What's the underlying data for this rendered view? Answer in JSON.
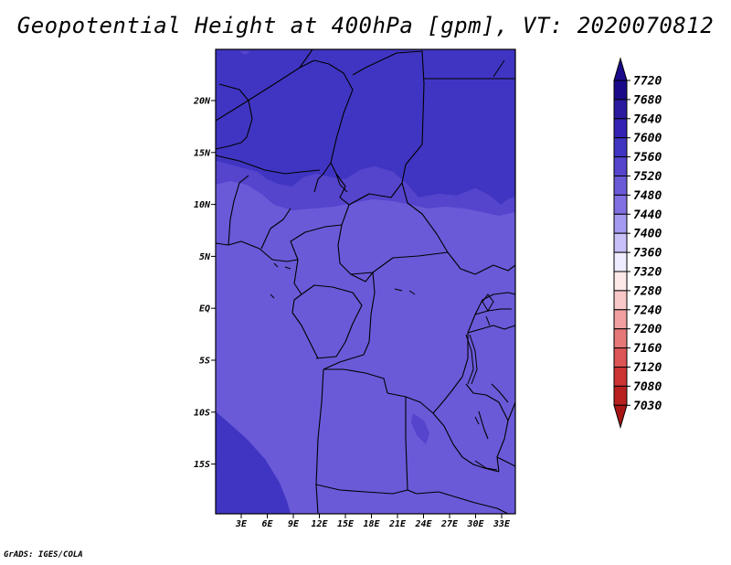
{
  "title": "Geopotential Height at 400hPa [gpm], VT: 2020070812",
  "credit": "GrADS: IGES/COLA",
  "axes": {
    "lon_labels": [
      "3E",
      "6E",
      "9E",
      "12E",
      "15E",
      "18E",
      "21E",
      "24E",
      "27E",
      "30E",
      "33E"
    ],
    "lat_labels": [
      "20N",
      "15N",
      "10N",
      "5N",
      "EQ",
      "5S",
      "10S",
      "15S"
    ]
  },
  "colorbar": {
    "labels": [
      "7720",
      "7680",
      "7640",
      "7600",
      "7560",
      "7520",
      "7480",
      "7440",
      "7400",
      "7360",
      "7320",
      "7280",
      "7240",
      "7200",
      "7160",
      "7120",
      "7080",
      "7030"
    ],
    "colors": [
      "#1a0a8a",
      "#2a1aa0",
      "#3322b4",
      "#4035c2",
      "#5544cc",
      "#6a5ad8",
      "#8070e2",
      "#a49af0",
      "#c8c0f8",
      "#f0ecff",
      "#ffe8e8",
      "#f8c8c8",
      "#f0a0a0",
      "#e67878",
      "#dd5555",
      "#cc3333",
      "#b82020",
      "#9a1010"
    ],
    "top_arrow_color": "#1a0a8a",
    "bottom_arrow_color": "#a81515"
  },
  "map_colors": {
    "band_7640": "#4035c2",
    "band_7600": "#5544cc",
    "band_7560": "#6a5ad8"
  }
}
